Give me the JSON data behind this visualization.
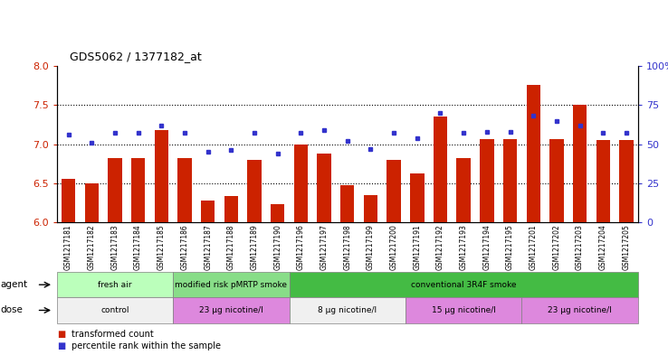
{
  "title": "GDS5062 / 1377182_at",
  "samples": [
    "GSM1217181",
    "GSM1217182",
    "GSM1217183",
    "GSM1217184",
    "GSM1217185",
    "GSM1217186",
    "GSM1217187",
    "GSM1217188",
    "GSM1217189",
    "GSM1217190",
    "GSM1217196",
    "GSM1217197",
    "GSM1217198",
    "GSM1217199",
    "GSM1217200",
    "GSM1217191",
    "GSM1217192",
    "GSM1217193",
    "GSM1217194",
    "GSM1217195",
    "GSM1217201",
    "GSM1217202",
    "GSM1217203",
    "GSM1217204",
    "GSM1217205"
  ],
  "bar_values": [
    6.55,
    6.5,
    6.82,
    6.82,
    7.18,
    6.82,
    6.28,
    6.33,
    6.8,
    6.23,
    6.99,
    6.88,
    6.47,
    6.35,
    6.8,
    6.62,
    7.35,
    6.82,
    7.06,
    7.06,
    7.76,
    7.06,
    7.5,
    7.05,
    7.05
  ],
  "dot_values": [
    56,
    51,
    57,
    57,
    62,
    57,
    45,
    46,
    57,
    44,
    57,
    59,
    52,
    47,
    57,
    54,
    70,
    57,
    58,
    58,
    68,
    65,
    62,
    57,
    57
  ],
  "bar_color": "#cc2200",
  "dot_color": "#3333cc",
  "ylim_left": [
    6.0,
    8.0
  ],
  "ylim_right": [
    0,
    100
  ],
  "yticks_left": [
    6.0,
    6.5,
    7.0,
    7.5,
    8.0
  ],
  "yticks_right": [
    0,
    25,
    50,
    75,
    100
  ],
  "ytick_labels_right": [
    "0",
    "25",
    "50",
    "75",
    "100%"
  ],
  "hlines": [
    6.5,
    7.0,
    7.5
  ],
  "agent_groups": [
    {
      "label": "fresh air",
      "start": 0,
      "end": 5,
      "color": "#bbffbb"
    },
    {
      "label": "modified risk pMRTP smoke",
      "start": 5,
      "end": 10,
      "color": "#88dd88"
    },
    {
      "label": "conventional 3R4F smoke",
      "start": 10,
      "end": 25,
      "color": "#44bb44"
    }
  ],
  "dose_groups": [
    {
      "label": "control",
      "start": 0,
      "end": 5,
      "color": "#f0f0f0"
    },
    {
      "label": "23 μg nicotine/l",
      "start": 5,
      "end": 10,
      "color": "#dd88dd"
    },
    {
      "label": "8 μg nicotine/l",
      "start": 10,
      "end": 15,
      "color": "#f0f0f0"
    },
    {
      "label": "15 μg nicotine/l",
      "start": 15,
      "end": 20,
      "color": "#dd88dd"
    },
    {
      "label": "23 μg nicotine/l",
      "start": 20,
      "end": 25,
      "color": "#dd88dd"
    }
  ],
  "legend_items": [
    {
      "label": "transformed count",
      "color": "#cc2200"
    },
    {
      "label": "percentile rank within the sample",
      "color": "#3333cc"
    }
  ]
}
